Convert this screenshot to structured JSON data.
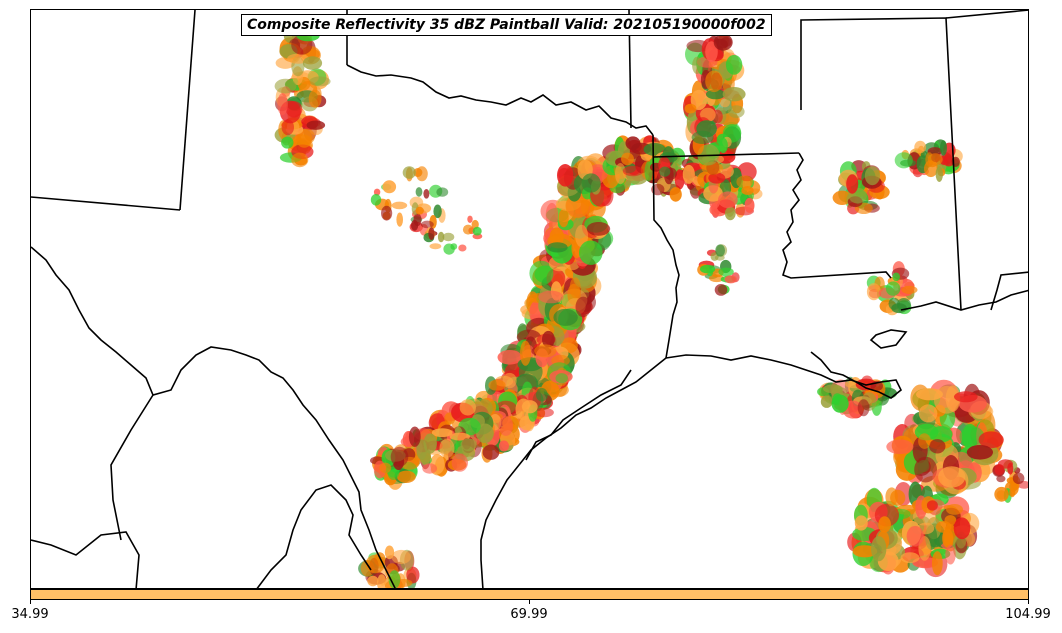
{
  "title": "Composite Reflectivity 35 dBZ Paintball Valid: 202105190000f002",
  "colorbar": {
    "color": "#ffbf66",
    "ticks": [
      "34.99",
      "69.99",
      "104.99"
    ]
  },
  "palette": {
    "orange": "#f58200",
    "light_orange": "#ffa640",
    "red": "#e81c1c",
    "dark_red": "#a01818",
    "bright_green": "#2ed02e",
    "dark_green": "#2f8a2f",
    "olive": "#9aa038",
    "salmon": "#ff5a4a"
  }
}
